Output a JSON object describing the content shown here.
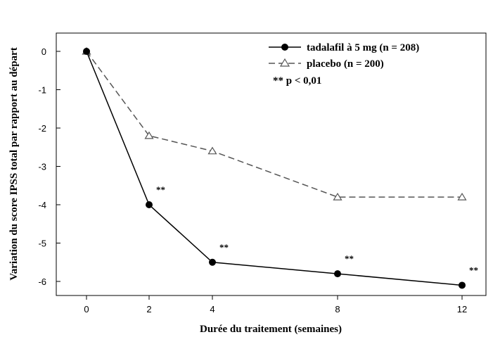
{
  "chart_data": {
    "type": "line",
    "xlabel": "Durée du traitement (semaines)",
    "ylabel": "Variation du score IPSS total par rapport au départ",
    "x_ticks": [
      0,
      2,
      4,
      8,
      12
    ],
    "y_ticks": [
      0,
      -1,
      -2,
      -3,
      -4,
      -5,
      -6
    ],
    "ylim": [
      -6.5,
      0.5
    ],
    "series": [
      {
        "name": "tadalafil à 5 mg (n = 208)",
        "x": [
          0,
          2,
          4,
          8,
          12
        ],
        "values": [
          0,
          -4.0,
          -5.5,
          -5.8,
          -6.1
        ],
        "line_style": "solid",
        "marker": "filled-circle",
        "color": "#000000"
      },
      {
        "name": "placebo (n = 200)",
        "x": [
          0,
          2,
          4,
          8,
          12
        ],
        "values": [
          0,
          -2.2,
          -2.6,
          -3.8,
          -3.8
        ],
        "line_style": "dashed",
        "marker": "open-triangle",
        "color": "#555555"
      }
    ],
    "annotations": [
      {
        "x": 2,
        "text": "**"
      },
      {
        "x": 4,
        "text": "**"
      },
      {
        "x": 8,
        "text": "**"
      },
      {
        "x": 12,
        "text": "**"
      }
    ],
    "legend_note": "** p < 0,01",
    "legend_position": "top-right",
    "grid": false
  }
}
